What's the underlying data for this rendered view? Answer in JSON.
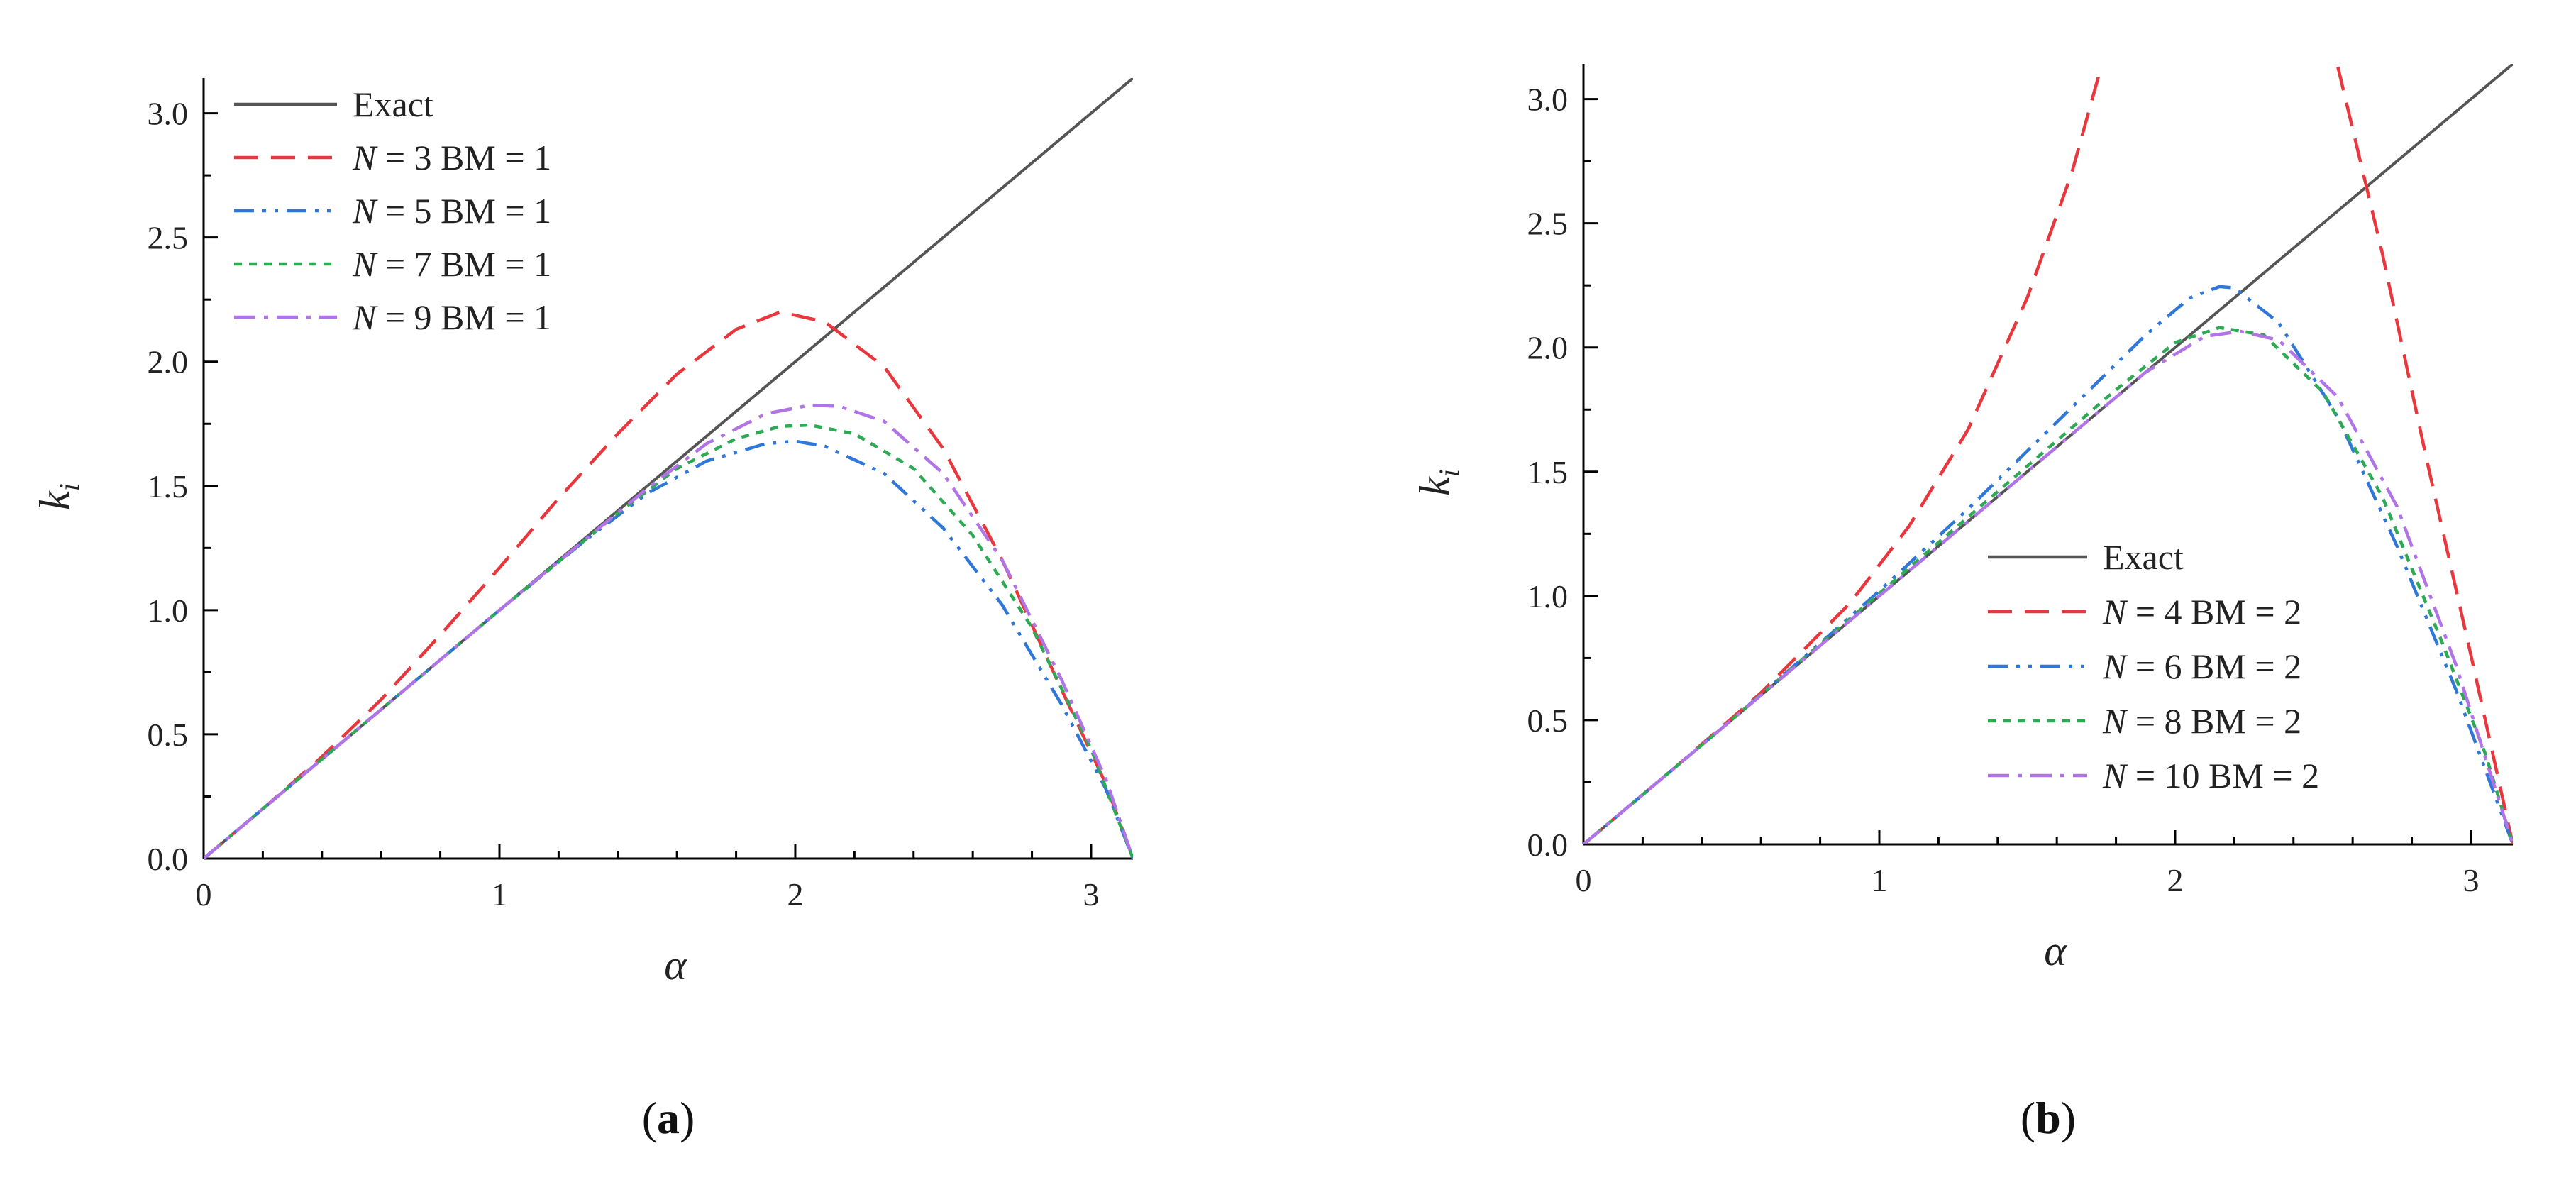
{
  "chart_data": [
    {
      "panel": "a",
      "panel_label": {
        "open": "(",
        "letter": "a",
        "close": ")"
      },
      "type": "line",
      "xlabel": "α",
      "ylabel": "k",
      "ylabel_sub": "i",
      "xlim": [
        0,
        3.1416
      ],
      "ylim": [
        0,
        3.1416
      ],
      "xticks": [
        0,
        1,
        2,
        3
      ],
      "yticks": [
        0.0,
        0.5,
        1.0,
        1.5,
        2.0,
        2.5,
        3.0
      ],
      "xtick_labels": [
        "0",
        "1",
        "2",
        "3"
      ],
      "ytick_labels": [
        "0.0",
        "0.5",
        "1.0",
        "1.5",
        "2.0",
        "2.5",
        "3.0"
      ],
      "grid": false,
      "legend_position": "top-left",
      "series": [
        {
          "name": "Exact",
          "color": "#555555",
          "dash": "solid",
          "label": [
            "",
            "Exact"
          ],
          "x": [
            0,
            3.1416
          ],
          "y": [
            0,
            3.1416
          ]
        },
        {
          "name": "N = 3 BM = 1",
          "color": "#e8383d",
          "dash": "dash",
          "label": [
            "N",
            " = 3 BM = 1"
          ],
          "x": [
            0,
            0.2,
            0.4,
            0.6,
            0.8,
            1.0,
            1.2,
            1.4,
            1.6,
            1.8,
            1.95,
            2.1,
            2.3,
            2.5,
            2.7,
            2.9,
            3.05,
            3.1416
          ],
          "y": [
            0,
            0.2,
            0.41,
            0.64,
            0.9,
            1.17,
            1.45,
            1.71,
            1.95,
            2.13,
            2.2,
            2.16,
            1.98,
            1.65,
            1.2,
            0.68,
            0.3,
            0
          ]
        },
        {
          "name": "N = 5 BM = 1",
          "color": "#2f77d8",
          "dash": "dashdotdot",
          "label": [
            "N",
            " = 5 BM = 1"
          ],
          "x": [
            0,
            0.5,
            1.0,
            1.3,
            1.5,
            1.7,
            1.9,
            2.0,
            2.1,
            2.3,
            2.5,
            2.7,
            2.9,
            3.05,
            3.1416
          ],
          "y": [
            0,
            0.5,
            1.0,
            1.29,
            1.47,
            1.6,
            1.67,
            1.68,
            1.66,
            1.55,
            1.33,
            1.02,
            0.62,
            0.28,
            0
          ]
        },
        {
          "name": "N = 7 BM = 1",
          "color": "#2eaa55",
          "dash": "dot",
          "label": [
            "N",
            " = 7 BM = 1"
          ],
          "x": [
            0,
            0.5,
            1.0,
            1.4,
            1.6,
            1.8,
            1.95,
            2.05,
            2.2,
            2.4,
            2.6,
            2.8,
            3.0,
            3.1416
          ],
          "y": [
            0,
            0.5,
            1.0,
            1.39,
            1.57,
            1.69,
            1.74,
            1.745,
            1.71,
            1.57,
            1.3,
            0.93,
            0.44,
            0
          ]
        },
        {
          "name": "N = 9 BM = 1",
          "color": "#b074e6",
          "dash": "dashdot",
          "label": [
            "N",
            " = 9 BM = 1"
          ],
          "x": [
            0,
            0.5,
            1.0,
            1.5,
            1.7,
            1.9,
            2.05,
            2.15,
            2.3,
            2.5,
            2.7,
            2.9,
            3.05,
            3.1416
          ],
          "y": [
            0,
            0.5,
            1.0,
            1.49,
            1.67,
            1.79,
            1.825,
            1.82,
            1.76,
            1.55,
            1.2,
            0.72,
            0.32,
            0
          ]
        }
      ]
    },
    {
      "panel": "b",
      "panel_label": {
        "open": "(",
        "letter": "b",
        "close": ")"
      },
      "type": "line",
      "xlabel": "α",
      "ylabel": "k",
      "ylabel_sub": "i",
      "xlim": [
        0,
        3.1416
      ],
      "ylim": [
        0,
        3.1416
      ],
      "xticks": [
        0,
        1,
        2,
        3
      ],
      "yticks": [
        0.0,
        0.5,
        1.0,
        1.5,
        2.0,
        2.5,
        3.0
      ],
      "xtick_labels": [
        "0",
        "1",
        "2",
        "3"
      ],
      "ytick_labels": [
        "0.0",
        "0.5",
        "1.0",
        "1.5",
        "2.0",
        "2.5",
        "3.0"
      ],
      "grid": false,
      "legend_position": "bottom-center",
      "series": [
        {
          "name": "Exact",
          "color": "#555555",
          "dash": "solid",
          "label": [
            "",
            "Exact"
          ],
          "x": [
            0,
            3.1416
          ],
          "y": [
            0,
            3.1416
          ]
        },
        {
          "name": "N = 4 BM = 2",
          "color": "#e8383d",
          "dash": "dash",
          "label": [
            "N",
            " = 4   BM = 2"
          ],
          "x": [
            0,
            0.3,
            0.6,
            0.9,
            1.1,
            1.3,
            1.5,
            1.65,
            1.75
          ],
          "y": [
            0,
            0.3,
            0.61,
            0.97,
            1.28,
            1.67,
            2.2,
            2.7,
            3.13
          ],
          "x2": [
            2.55,
            2.7,
            2.85,
            3.0,
            3.1416
          ],
          "y2": [
            3.13,
            2.38,
            1.55,
            0.76,
            0
          ]
        },
        {
          "name": "N = 6 BM = 2",
          "color": "#2f77d8",
          "dash": "dashdotdot",
          "label": [
            "N",
            " = 6   BM = 2"
          ],
          "x": [
            0,
            0.5,
            0.8,
            1.0,
            1.3,
            1.6,
            1.9,
            2.05,
            2.15,
            2.2,
            2.35,
            2.55,
            2.75,
            2.95,
            3.1416
          ],
          "y": [
            0,
            0.5,
            0.81,
            1.02,
            1.35,
            1.7,
            2.05,
            2.2,
            2.245,
            2.24,
            2.1,
            1.72,
            1.2,
            0.62,
            0
          ]
        },
        {
          "name": "N = 8 BM = 2",
          "color": "#2eaa55",
          "dash": "dot",
          "label": [
            "N",
            " = 8   BM = 2"
          ],
          "x": [
            0,
            0.5,
            1.0,
            1.4,
            1.8,
            2.0,
            2.15,
            2.3,
            2.5,
            2.7,
            2.9,
            3.05,
            3.1416
          ],
          "y": [
            0,
            0.5,
            1.01,
            1.42,
            1.83,
            2.02,
            2.08,
            2.05,
            1.82,
            1.4,
            0.82,
            0.36,
            0
          ]
        },
        {
          "name": "N = 10 BM = 2",
          "color": "#b074e6",
          "dash": "dashdot",
          "label": [
            "N",
            " = 10 BM = 2"
          ],
          "x": [
            0,
            0.5,
            1.0,
            1.5,
            1.9,
            2.1,
            2.22,
            2.35,
            2.55,
            2.75,
            2.95,
            3.1416
          ],
          "y": [
            0,
            0.5,
            1.0,
            1.5,
            1.9,
            2.045,
            2.065,
            2.03,
            1.8,
            1.36,
            0.72,
            0
          ]
        }
      ]
    }
  ]
}
